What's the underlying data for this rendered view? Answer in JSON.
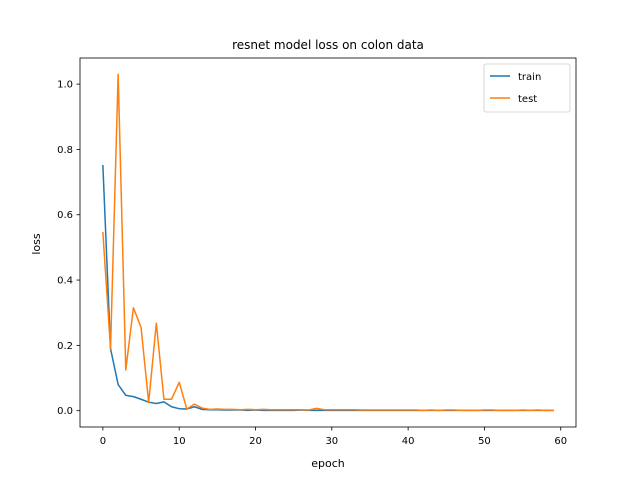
{
  "chart_data": {
    "type": "line",
    "title": "resnet model loss on colon data",
    "xlabel": "epoch",
    "ylabel": "loss",
    "xlim": [
      -3,
      62
    ],
    "ylim": [
      -0.05,
      1.08
    ],
    "xticks": [
      0,
      10,
      20,
      30,
      40,
      50,
      60
    ],
    "yticks": [
      0.0,
      0.2,
      0.4,
      0.6,
      0.8,
      1.0
    ],
    "xtick_labels": [
      "0",
      "10",
      "20",
      "30",
      "40",
      "50",
      "60"
    ],
    "ytick_labels": [
      "0.0",
      "0.2",
      "0.4",
      "0.6",
      "0.8",
      "1.0"
    ],
    "grid": false,
    "legend_position": "top-right",
    "series": [
      {
        "name": "train",
        "color": "#1f77b4",
        "x": [
          0,
          1,
          2,
          3,
          4,
          5,
          6,
          7,
          8,
          9,
          10,
          11,
          12,
          13,
          14,
          15,
          16,
          17,
          18,
          19,
          20,
          21,
          22,
          23,
          24,
          25,
          26,
          27,
          28,
          29,
          30,
          31,
          32,
          33,
          34,
          35,
          36,
          37,
          38,
          39,
          40,
          41,
          42,
          43,
          44,
          45,
          46,
          47,
          48,
          49,
          50,
          51,
          52,
          53,
          54,
          55,
          56,
          57,
          58,
          59
        ],
        "values": [
          0.75,
          0.19,
          0.08,
          0.047,
          0.043,
          0.035,
          0.026,
          0.022,
          0.027,
          0.012,
          0.006,
          0.005,
          0.012,
          0.004,
          0.003,
          0.003,
          0.002,
          0.002,
          0.002,
          0.001,
          0.002,
          0.001,
          0.001,
          0.001,
          0.001,
          0.001,
          0.002,
          0.001,
          0.001,
          0.001,
          0.001,
          0.001,
          0.001,
          0.001,
          0.001,
          0.001,
          0.001,
          0.001,
          0.001,
          0.001,
          0.001,
          0.001,
          0.001,
          0.001,
          0.001,
          0.001,
          0.001,
          0.001,
          0.001,
          0.001,
          0.001,
          0.001,
          0.001,
          0.001,
          0.001,
          0.001,
          0.001,
          0.001,
          0.001,
          0.001
        ]
      },
      {
        "name": "test",
        "color": "#ff7f0e",
        "x": [
          0,
          1,
          2,
          3,
          4,
          5,
          6,
          7,
          8,
          9,
          10,
          11,
          12,
          13,
          14,
          15,
          16,
          17,
          18,
          19,
          20,
          21,
          22,
          23,
          24,
          25,
          26,
          27,
          28,
          29,
          30,
          31,
          32,
          33,
          34,
          35,
          36,
          37,
          38,
          39,
          40,
          41,
          42,
          43,
          44,
          45,
          46,
          47,
          48,
          49,
          50,
          51,
          52,
          53,
          54,
          55,
          56,
          57,
          58,
          59
        ],
        "values": [
          0.545,
          0.19,
          1.03,
          0.125,
          0.315,
          0.255,
          0.025,
          0.268,
          0.035,
          0.035,
          0.087,
          0.005,
          0.02,
          0.008,
          0.004,
          0.005,
          0.004,
          0.004,
          0.003,
          0.004,
          0.003,
          0.004,
          0.003,
          0.003,
          0.003,
          0.003,
          0.003,
          0.002,
          0.007,
          0.003,
          0.003,
          0.003,
          0.003,
          0.003,
          0.002,
          0.002,
          0.002,
          0.002,
          0.002,
          0.002,
          0.002,
          0.002,
          0.001,
          0.002,
          0.001,
          0.002,
          0.002,
          0.001,
          0.001,
          0.001,
          0.002,
          0.002,
          0.001,
          0.001,
          0.001,
          0.002,
          0.001,
          0.002,
          0.001,
          0.001
        ]
      }
    ]
  }
}
